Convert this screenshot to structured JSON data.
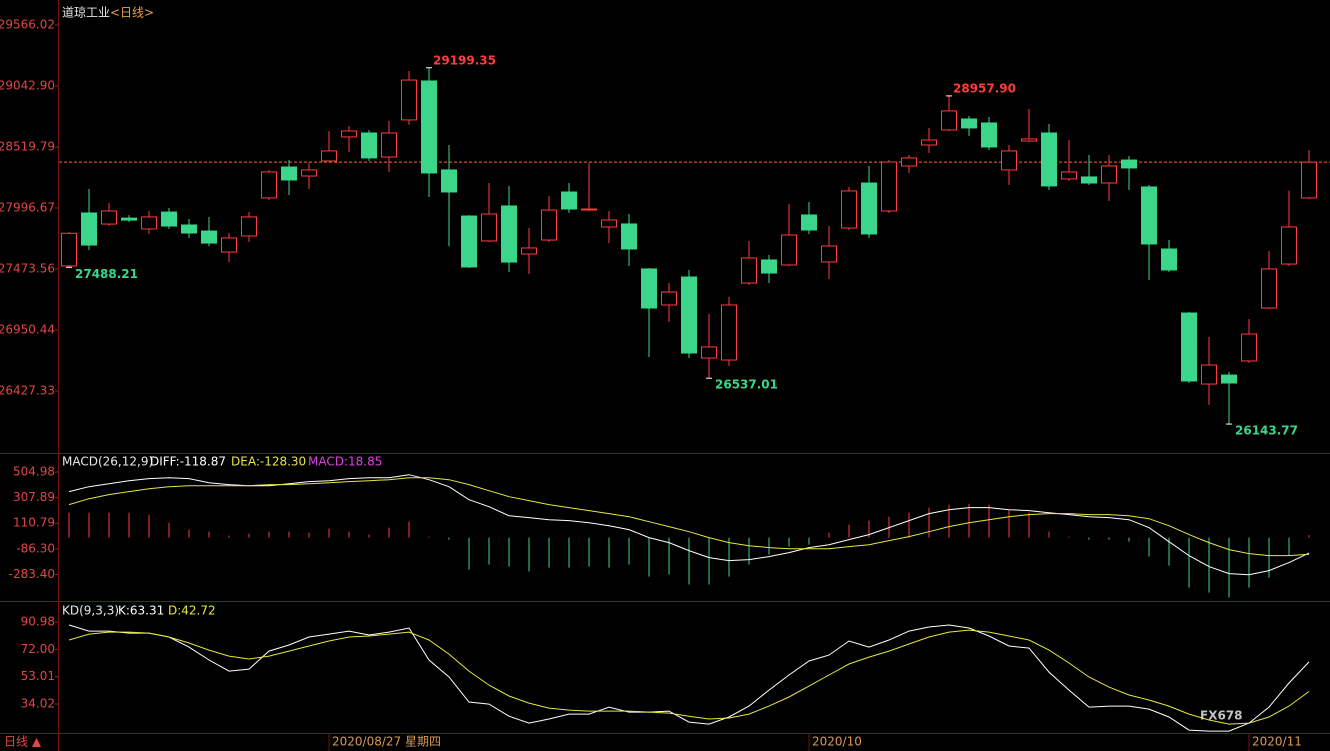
{
  "chart_data": [
    {
      "type": "candlestick",
      "title": "道琼工业",
      "subtitle": "<日线>",
      "categories": [
        null,
        null,
        null,
        null,
        null,
        null,
        null,
        null,
        null,
        null,
        null,
        null,
        null,
        "2020/08/27 星期四",
        null,
        null,
        null,
        null,
        null,
        null,
        null,
        null,
        null,
        null,
        null,
        null,
        null,
        null,
        null,
        null,
        null,
        null,
        null,
        null,
        null,
        null,
        null,
        "2020/10",
        null,
        null,
        null,
        null,
        null,
        null,
        null,
        null,
        null,
        null,
        null,
        null,
        null,
        null,
        null,
        null,
        null,
        null,
        null,
        null,
        null,
        "2020/11",
        null,
        null,
        null
      ],
      "open": [
        27500,
        27954,
        27859,
        27910,
        27817,
        27962,
        27851,
        27799,
        27619,
        27757,
        28083,
        28348,
        28271,
        28400,
        28606,
        28640,
        28434,
        28752,
        29086,
        28323,
        27928,
        27714,
        28014,
        27602,
        27722,
        28134,
        27980,
        27834,
        27860,
        27474,
        27165,
        27405,
        26710,
        26693,
        27353,
        27551,
        27508,
        27937,
        27534,
        27825,
        28211,
        27971,
        28357,
        28537,
        28666,
        28760,
        28726,
        28323,
        28571,
        28640,
        28246,
        28263,
        28211,
        28408,
        28177,
        27645,
        27096,
        26487,
        26564,
        26685,
        27139,
        27516,
        28083
      ],
      "high": [
        27790,
        28160,
        28040,
        27936,
        27971,
        27997,
        27902,
        27920,
        27782,
        27962,
        28323,
        28408,
        28383,
        28657,
        28700,
        28666,
        28743,
        29171,
        29199.35,
        28537,
        27936,
        28211,
        28186,
        27825,
        28100,
        28211,
        28383,
        27971,
        27946,
        27482,
        27354,
        27465,
        27088,
        27233,
        27714,
        27594,
        28031,
        28048,
        27842,
        28177,
        28357,
        28408,
        28451,
        28683,
        28957.9,
        28786,
        28777,
        28537,
        28846,
        28717,
        28580,
        28451,
        28451,
        28443,
        28194,
        27722,
        27105,
        26890,
        26590,
        27045,
        27628,
        28143,
        28494
      ],
      "low": [
        27488.21,
        27636,
        27842,
        27876,
        27774,
        27817,
        27740,
        27670,
        27534,
        27705,
        28065,
        28108,
        28160,
        28391,
        28477,
        28400,
        28306,
        28709,
        28091,
        27670,
        27482,
        27705,
        27448,
        27430,
        27705,
        27954,
        27971,
        27696,
        27499,
        26719,
        27019,
        26710,
        26537.01,
        26642,
        27336,
        27353,
        27499,
        27774,
        27388,
        27808,
        27740,
        27954,
        28297,
        28468,
        28657,
        28614,
        28494,
        28194,
        28563,
        28151,
        28228,
        28194,
        28057,
        28151,
        27379,
        27448,
        26496,
        26307,
        26143.77,
        26668,
        27131,
        27499,
        28074
      ],
      "close": [
        27780,
        27679,
        27971,
        27893,
        27920,
        27842,
        27782,
        27696,
        27740,
        27920,
        28306,
        28237,
        28323,
        28486,
        28657,
        28426,
        28640,
        29094,
        28297,
        28134,
        27491,
        27945,
        27533,
        27654,
        27979,
        27988,
        27988,
        27894,
        27645,
        27139,
        27276,
        26753,
        26805,
        27165,
        27568,
        27439,
        27765,
        27808,
        27671,
        28143,
        27774,
        28391,
        28426,
        28580,
        28829,
        28683,
        28520,
        28486,
        28589,
        28186,
        28306,
        28211,
        28357,
        28340,
        27688,
        27465,
        26513,
        26650,
        26496,
        26916,
        27474,
        27834,
        28390
      ],
      "up_color": "#ff3b3b",
      "down_color": "#3bd68a",
      "last_line_color": "#ff6a3c",
      "ylim": [
        25904.2,
        29737.5
      ],
      "yticks": [
        29566.02,
        {
          "value": 29042.9,
          "label": "29042.90"
        },
        28519.79,
        27996.67,
        27473.56,
        26950.44,
        26427.33
      ],
      "annotations": [
        {
          "index": 18,
          "at": "high",
          "label": "29199.35"
        },
        {
          "index": 44,
          "at": "high",
          "label": "28957.90"
        },
        {
          "index": 0,
          "at": "low",
          "label": "27488.21"
        },
        {
          "index": 32,
          "at": "low",
          "label": "26537.01"
        },
        {
          "index": 58,
          "at": "low",
          "label": "26143.77"
        }
      ]
    },
    {
      "type": "macd",
      "title": "MACD(26,12,9)",
      "series": [
        {
          "name": "DIFF:-118.87",
          "color": "#ffffff",
          "values": [
            354,
            392,
            415,
            438,
            454,
            461,
            454,
            423,
            408,
            400,
            400,
            415,
            431,
            438,
            454,
            461,
            461,
            484,
            446,
            392,
            292,
            238,
            169,
            154,
            138,
            131,
            115,
            92,
            62,
            0,
            -38,
            -100,
            -154,
            -177,
            -169,
            -146,
            -115,
            -77,
            -54,
            -15,
            23,
            77,
            131,
            185,
            215,
            231,
            231,
            215,
            208,
            192,
            177,
            161,
            154,
            138,
            77,
            -31,
            -138,
            -223,
            -277,
            -285,
            -254,
            -192,
            -118.87
          ]
        },
        {
          "name": "DEA:-128.30",
          "color": "#e6e640",
          "values": [
            254,
            300,
            331,
            354,
            377,
            392,
            400,
            400,
            400,
            400,
            408,
            408,
            415,
            423,
            431,
            438,
            446,
            461,
            461,
            446,
            408,
            361,
            315,
            285,
            254,
            231,
            208,
            185,
            161,
            123,
            85,
            46,
            0,
            -38,
            -62,
            -77,
            -85,
            -85,
            -85,
            -69,
            -54,
            -23,
            8,
            46,
            85,
            115,
            138,
            161,
            177,
            185,
            185,
            177,
            177,
            169,
            146,
            92,
            23,
            -38,
            -92,
            -123,
            -138,
            -138,
            -128.3
          ]
        }
      ],
      "bars": {
        "name": "MACD:18.85",
        "color": "#e040e0",
        "up_color": "#ff3b3b",
        "down_color": "#3bd68a",
        "values": [
          192,
          192,
          192,
          192,
          177,
          115,
          62,
          46,
          15,
          31,
          46,
          46,
          38,
          69,
          46,
          23,
          77,
          123,
          8,
          -15,
          -246,
          -208,
          -223,
          -261,
          -231,
          -231,
          -223,
          -231,
          -208,
          -300,
          -285,
          -361,
          -361,
          -300,
          -208,
          -131,
          -69,
          -54,
          38,
          100,
          131,
          161,
          192,
          231,
          254,
          261,
          254,
          215,
          192,
          46,
          8,
          -15,
          -15,
          -31,
          -146,
          -215,
          -385,
          -423,
          -461,
          -385,
          -308,
          -138,
          18.85
        ]
      },
      "ylim": [
        -480,
        636
      ],
      "yticks": [
        504.98,
        307.89,
        110.79,
        {
          "value": -86.3,
          "label": "-86.30"
        },
        {
          "value": -283.4,
          "label": "-283.40"
        }
      ]
    },
    {
      "type": "kd",
      "title": "KD(9,3,3)",
      "series": [
        {
          "name": "K:63.31",
          "color": "#ffffff",
          "values": [
            88.9,
            84.7,
            84.7,
            83.3,
            83.3,
            80.6,
            73.6,
            64.6,
            56.9,
            58.3,
            70.8,
            75,
            80.6,
            82.6,
            84.7,
            82,
            84,
            86.8,
            64.6,
            52.8,
            35.4,
            34,
            25.6,
            20.8,
            23.6,
            27,
            27,
            31.9,
            28.4,
            28.4,
            29.1,
            21.5,
            20.1,
            25,
            32.6,
            43.7,
            54.2,
            63.9,
            68,
            77.8,
            73.6,
            78.5,
            84.7,
            87.5,
            88.9,
            86.8,
            81.3,
            74.3,
            72.9,
            56.2,
            43.7,
            31.9,
            32.6,
            32.6,
            30.5,
            25,
            15.9,
            15.2,
            15.2,
            20.8,
            31.9,
            48.6,
            63.31
          ]
        },
        {
          "name": "D:42.72",
          "color": "#e6e640",
          "values": [
            78.5,
            82.6,
            84,
            84,
            83.3,
            80.6,
            76.4,
            71.5,
            67.3,
            65.3,
            67.3,
            70.8,
            74.3,
            77.8,
            80.6,
            81.3,
            82.6,
            84,
            78.5,
            68.7,
            56.9,
            47.2,
            39.6,
            34.7,
            31.2,
            29.8,
            29.1,
            29.1,
            29.1,
            28.4,
            27.7,
            25.6,
            23.6,
            24.3,
            27,
            32.6,
            38.9,
            46.5,
            54.2,
            61.8,
            66.6,
            70.8,
            75.7,
            80.6,
            84,
            85.4,
            84,
            81.3,
            78.5,
            71.5,
            62.5,
            52.8,
            45.8,
            40.3,
            36.8,
            32.6,
            27,
            22.9,
            20.1,
            20.8,
            25,
            32.6,
            42.72
          ]
        }
      ],
      "ylim": [
        13.9,
        104.2
      ],
      "yticks": [
        90.98,
        {
          "value": 72,
          "label": "72.00"
        },
        53.01,
        34.02
      ]
    }
  ],
  "footer": {
    "period": "日线 ▲",
    "watermark": "FX678"
  }
}
